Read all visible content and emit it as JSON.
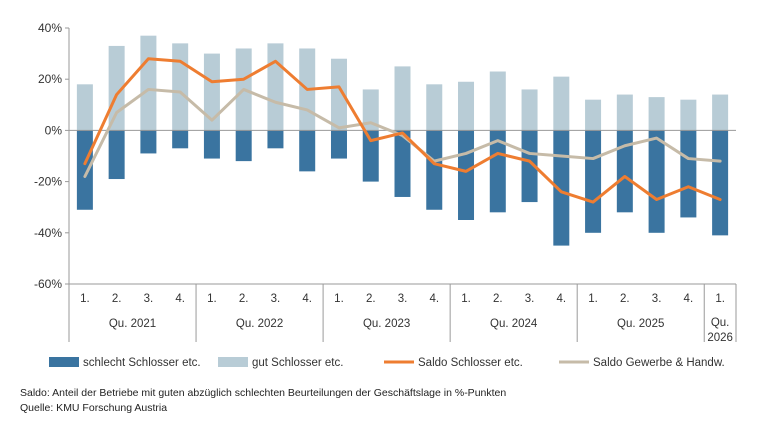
{
  "chart_data": {
    "type": "bar",
    "stacked_bars_with_lines": true,
    "categories": [
      "1.",
      "2.",
      "3.",
      "4.",
      "1.",
      "2.",
      "3.",
      "4.",
      "1.",
      "2.",
      "3.",
      "4.",
      "1.",
      "2.",
      "3.",
      "4.",
      "1.",
      "2.",
      "3.",
      "4.",
      "1."
    ],
    "year_groups": [
      {
        "label": "Qu. 2021",
        "start": 0,
        "count": 4
      },
      {
        "label": "Qu. 2022",
        "start": 4,
        "count": 4
      },
      {
        "label": "Qu. 2023",
        "start": 8,
        "count": 4
      },
      {
        "label": "Qu. 2024",
        "start": 12,
        "count": 4
      },
      {
        "label": "Qu. 2025",
        "start": 16,
        "count": 4
      },
      {
        "label": "Qu. 2026",
        "start": 20,
        "count": 1
      }
    ],
    "ylim": [
      -60,
      40
    ],
    "yticks": [
      40,
      20,
      0,
      -20,
      -40,
      -60
    ],
    "ytick_labels": [
      "40%",
      "20%",
      "0%",
      "-20%",
      "-40%",
      "-60%"
    ],
    "grid": false,
    "legend_position": "bottom",
    "series": [
      {
        "name": "schlecht Schlosser etc.",
        "kind": "bar",
        "color": "#3a74a0",
        "values": [
          -31,
          -19,
          -9,
          -7,
          -11,
          -12,
          -7,
          -16,
          -11,
          -20,
          -26,
          -31,
          -35,
          -32,
          -28,
          -45,
          -40,
          -32,
          -40,
          -34,
          -41
        ]
      },
      {
        "name": "gut Schlosser etc.",
        "kind": "bar",
        "color": "#b8ccd6",
        "values": [
          18,
          33,
          37,
          34,
          30,
          32,
          34,
          32,
          28,
          16,
          25,
          18,
          19,
          23,
          16,
          21,
          12,
          14,
          13,
          12,
          14
        ]
      },
      {
        "name": "Saldo Schlosser etc.",
        "kind": "line",
        "color": "#ee7d31",
        "values": [
          -13,
          14,
          28,
          27,
          19,
          20,
          27,
          16,
          17,
          -4,
          -1,
          -13,
          -16,
          -9,
          -12,
          -24,
          -28,
          -18,
          -27,
          -22,
          -27
        ]
      },
      {
        "name": "Saldo Gewerbe & Handw.",
        "kind": "line",
        "color": "#c6bba8",
        "values": [
          -18,
          7,
          16,
          15,
          4,
          16,
          11,
          8,
          1,
          3,
          -2,
          -12,
          -9,
          -4,
          -9,
          -10,
          -11,
          -6,
          -3,
          -11,
          -12
        ]
      }
    ]
  },
  "notes": {
    "line1": "Saldo: Anteil der Betriebe mit guten abzüglich schlechten Beurteilungen der Geschäftslage in %-Punkten",
    "line2": "Quelle: KMU Forschung Austria"
  }
}
